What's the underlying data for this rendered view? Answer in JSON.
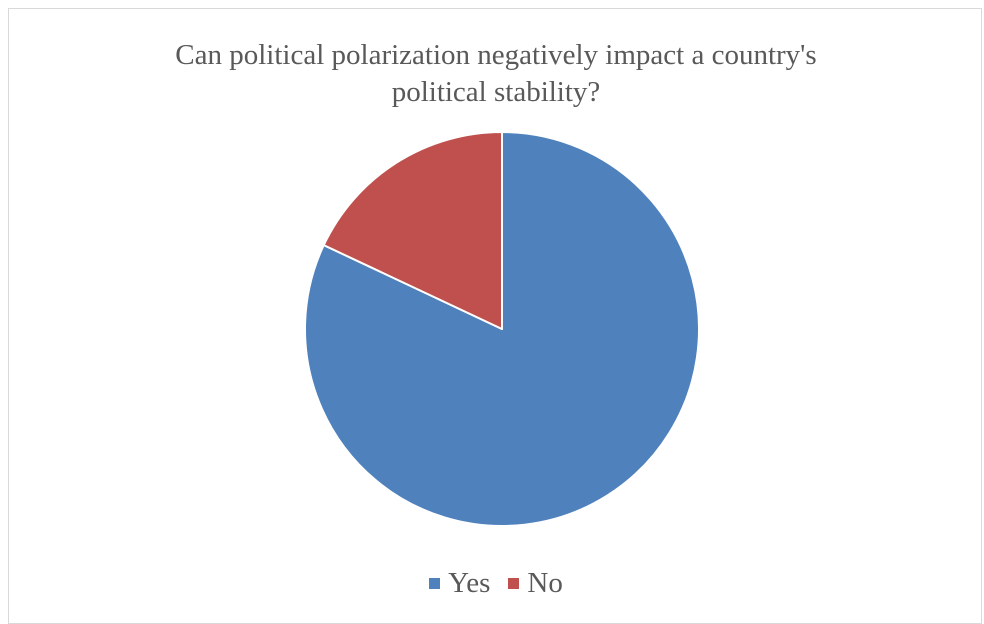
{
  "chart_data": {
    "type": "pie",
    "title_lines": [
      "Can political polarization negatively impact a country's",
      "political stability?"
    ],
    "categories": [
      "Yes",
      "No"
    ],
    "values": [
      82,
      18
    ],
    "colors": [
      "#4f81bd",
      "#c0504d"
    ],
    "legend": {
      "placement": "bottom",
      "entries": [
        "Yes",
        "No"
      ]
    },
    "data_labels": false
  }
}
